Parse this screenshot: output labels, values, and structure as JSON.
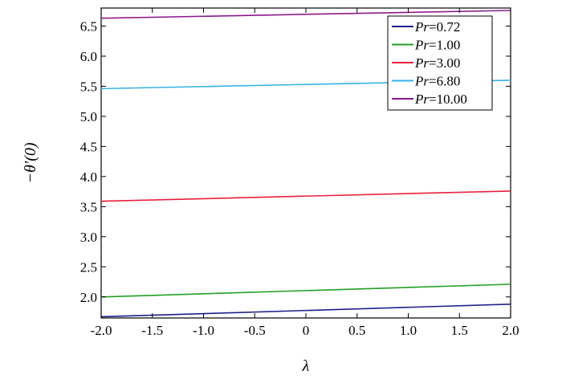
{
  "chart_data": {
    "type": "line",
    "title": "",
    "xlabel": "λ",
    "ylabel": "−θ′(0)",
    "xlim": [
      -2.0,
      2.0
    ],
    "ylim": [
      1.65,
      6.8
    ],
    "x_ticks": [
      -2.0,
      -1.5,
      -1.0,
      -0.5,
      0,
      0.5,
      1.0,
      1.5,
      2.0
    ],
    "x_tick_labels": [
      "-2.0",
      "-1.5",
      "-1.0",
      "-0.5",
      "0",
      "0.5",
      "1.0",
      "1.5",
      "2.0"
    ],
    "y_ticks": [
      2.0,
      2.5,
      3.0,
      3.5,
      4.0,
      4.5,
      5.0,
      5.5,
      6.0,
      6.5
    ],
    "y_tick_labels": [
      "2.0",
      "2.5",
      "3.0",
      "3.5",
      "4.0",
      "4.5",
      "5.0",
      "5.5",
      "6.0",
      "6.5"
    ],
    "grid": false,
    "legend_position": "top-right",
    "series": [
      {
        "name": "Pr=0.72",
        "name_italic": "Pr",
        "name_value": "=0.72",
        "color": "#1f1f8c",
        "x": [
          -2.0,
          2.0
        ],
        "y": [
          1.67,
          1.88
        ]
      },
      {
        "name": "Pr=1.00",
        "name_italic": "Pr",
        "name_value": "=1.00",
        "color": "#23a023",
        "x": [
          -2.0,
          2.0
        ],
        "y": [
          2.0,
          2.21
        ]
      },
      {
        "name": "Pr=3.00",
        "name_italic": "Pr",
        "name_value": "=3.00",
        "color": "#e8203c",
        "x": [
          -2.0,
          2.0
        ],
        "y": [
          3.59,
          3.76
        ]
      },
      {
        "name": "Pr=6.80",
        "name_italic": "Pr",
        "name_value": "=6.80",
        "color": "#36b3e6",
        "x": [
          -2.0,
          2.0
        ],
        "y": [
          5.46,
          5.6
        ]
      },
      {
        "name": "Pr=10.00",
        "name_italic": "Pr",
        "name_value": "=10.00",
        "color": "#8c1a8c",
        "x": [
          -2.0,
          2.0
        ],
        "y": [
          6.63,
          6.76
        ]
      }
    ]
  }
}
